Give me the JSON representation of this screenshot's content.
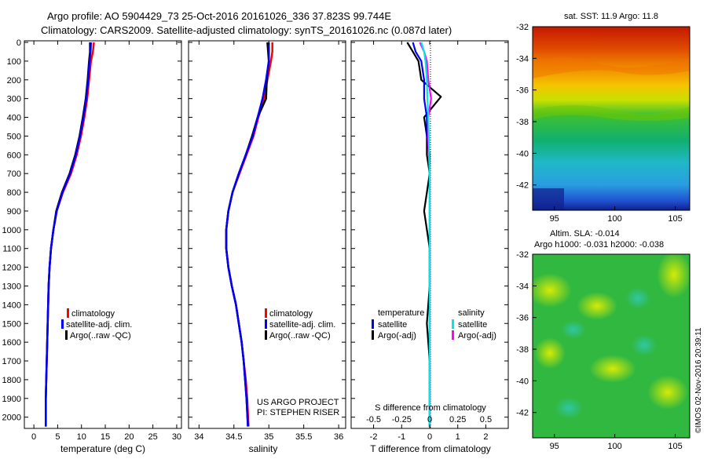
{
  "header": {
    "line1": "Argo profile: AO 5904429_73 25-Oct-2016 20161026_336 37.823S 99.744E",
    "line2": "Climatology: CARS2009. Satellite-adjusted climatology: synTS_20161026.nc (0.087d later)"
  },
  "colors": {
    "climatology": "#ff0000",
    "satellite": "#0000ff",
    "argo": "#000000",
    "sal_satellite": "#00e5e5",
    "sal_argo": "#ff00ff"
  },
  "panels": {
    "temperature": {
      "xlabel": "temperature (deg C)",
      "xticks": [
        "0",
        "5",
        "10",
        "15",
        "20",
        "25",
        "30"
      ],
      "legend": [
        "climatology",
        "satellite-adj. clim.",
        "Argo(..raw -QC)"
      ]
    },
    "salinity": {
      "xlabel": "salinity",
      "xticks": [
        "34",
        "34.5",
        "35",
        "35.5",
        "36"
      ],
      "legend": [
        "climatology",
        "satellite-adj. clim.",
        "Argo(..raw -QC)"
      ],
      "project_line1": "US ARGO PROJECT",
      "project_line2": "PI: STEPHEN RISER"
    },
    "difference": {
      "xlabel": "T difference from climatology",
      "xticks": [
        "-2",
        "-1",
        "0",
        "1",
        "2"
      ],
      "top_label": "S difference from climatology",
      "top_ticks": [
        "-0.5",
        "-0.25",
        "0",
        "0.25",
        "0.5"
      ],
      "legend_temp_title": "temperature",
      "legend_sal_title": "salinity",
      "legend_temp": [
        "satellite",
        "Argo(-adj)"
      ],
      "legend_sal": [
        "satellite",
        "Argo(-adj)"
      ]
    },
    "yticks": [
      "0",
      "100",
      "200",
      "300",
      "400",
      "500",
      "600",
      "700",
      "800",
      "900",
      "1000",
      "1100",
      "1200",
      "1300",
      "1400",
      "1500",
      "1600",
      "1700",
      "1800",
      "1900",
      "2000"
    ]
  },
  "maps": {
    "sst_title": "sat. SST: 11.9  Argo: 11.8",
    "sla_title1": "Altim. SLA: -0.014",
    "sla_title2": "Argo h1000: -0.031 h2000: -0.038",
    "lat_ticks": [
      "-32",
      "-34",
      "-36",
      "-38",
      "-40",
      "-42"
    ],
    "lon_ticks": [
      "95",
      "100",
      "105"
    ]
  },
  "footer": {
    "credit": "©IMOS 02-Nov-2016 20:39:11"
  },
  "chart_data": [
    {
      "type": "line",
      "xlabel": "temperature (deg C)",
      "ylabel": "",
      "xlim": [
        -2,
        31
      ],
      "ylim": [
        2060,
        0
      ],
      "series": [
        {
          "name": "climatology",
          "x": [
            12.6,
            12.4,
            12.0,
            11.6,
            11.2,
            10.6,
            9.9,
            9.0,
            7.8,
            6.1,
            4.8,
            4.1,
            3.6,
            3.3,
            3.1,
            3.0,
            2.9,
            2.8,
            2.7,
            2.6,
            2.5,
            2.5
          ],
          "y": [
            0,
            50,
            100,
            200,
            300,
            400,
            500,
            600,
            700,
            800,
            900,
            1000,
            1100,
            1200,
            1300,
            1400,
            1500,
            1600,
            1700,
            1800,
            1900,
            2050
          ]
        },
        {
          "name": "satellite-adj. clim.",
          "x": [
            12.0,
            11.9,
            11.7,
            11.4,
            11.0,
            10.4,
            9.7,
            8.8,
            7.6,
            6.0,
            4.8,
            4.1,
            3.6,
            3.3,
            3.1,
            3.0,
            2.9,
            2.8,
            2.7,
            2.6,
            2.5,
            2.5
          ],
          "y": [
            0,
            50,
            100,
            200,
            300,
            400,
            500,
            600,
            700,
            800,
            900,
            1000,
            1100,
            1200,
            1300,
            1400,
            1500,
            1600,
            1700,
            1800,
            1900,
            2050
          ]
        },
        {
          "name": "Argo(..raw -QC)",
          "x": [
            11.8,
            11.8,
            11.6,
            11.3,
            10.9,
            10.3,
            9.6,
            8.7,
            7.5,
            5.9,
            4.7,
            4.1,
            3.6,
            3.3,
            3.1,
            3.0,
            2.9,
            2.8,
            2.7,
            2.6,
            2.5,
            2.5
          ],
          "y": [
            0,
            50,
            100,
            200,
            300,
            400,
            500,
            600,
            700,
            800,
            900,
            1000,
            1100,
            1200,
            1300,
            1400,
            1500,
            1600,
            1700,
            1800,
            1900,
            2050
          ]
        }
      ]
    },
    {
      "type": "line",
      "xlabel": "salinity",
      "ylabel": "",
      "xlim": [
        33.85,
        36.1
      ],
      "ylim": [
        2060,
        0
      ],
      "series": [
        {
          "name": "climatology",
          "x": [
            35.05,
            35.05,
            35.03,
            34.98,
            34.93,
            34.85,
            34.78,
            34.68,
            34.58,
            34.48,
            34.42,
            34.39,
            34.39,
            34.42,
            34.47,
            34.53,
            34.57,
            34.61,
            34.64,
            34.67,
            34.69,
            34.71
          ],
          "y": [
            0,
            50,
            100,
            200,
            300,
            400,
            500,
            600,
            700,
            800,
            900,
            1000,
            1100,
            1200,
            1300,
            1400,
            1500,
            1600,
            1700,
            1800,
            1900,
            2050
          ]
        },
        {
          "name": "satellite-adj. clim.",
          "x": [
            35.0,
            35.0,
            35.0,
            34.96,
            34.91,
            34.84,
            34.77,
            34.67,
            34.57,
            34.48,
            34.42,
            34.39,
            34.39,
            34.42,
            34.47,
            34.53,
            34.57,
            34.61,
            34.64,
            34.66,
            34.68,
            34.7
          ],
          "y": [
            0,
            50,
            100,
            200,
            300,
            400,
            500,
            600,
            700,
            800,
            900,
            1000,
            1100,
            1200,
            1300,
            1400,
            1500,
            1600,
            1700,
            1800,
            1900,
            2050
          ]
        },
        {
          "name": "Argo(..raw -QC)",
          "x": [
            34.98,
            34.99,
            35.0,
            34.97,
            34.96,
            34.84,
            34.76,
            34.67,
            34.57,
            34.48,
            34.42,
            34.39,
            34.39,
            34.42,
            34.47,
            34.53,
            34.57,
            34.61,
            34.64,
            34.66,
            34.68,
            34.7
          ],
          "y": [
            0,
            50,
            100,
            200,
            300,
            400,
            500,
            600,
            700,
            800,
            900,
            1000,
            1100,
            1200,
            1300,
            1400,
            1500,
            1600,
            1700,
            1800,
            1900,
            2050
          ]
        }
      ]
    },
    {
      "type": "line",
      "xlabel": "T difference from climatology",
      "ylabel": "",
      "xlim": [
        -2.8,
        2.8
      ],
      "ylim": [
        2060,
        0
      ],
      "series": [
        {
          "name": "satellite",
          "x": [
            -0.6,
            -0.5,
            -0.3,
            -0.2,
            -0.2,
            -0.1,
            -0.1,
            0,
            0,
            0,
            0,
            0,
            0,
            0,
            0,
            0
          ],
          "y": [
            0,
            50,
            100,
            200,
            300,
            400,
            500,
            600,
            700,
            900,
            1100,
            1300,
            1500,
            1700,
            1900,
            2050
          ]
        },
        {
          "name": "Argo(-adj)",
          "x": [
            -0.8,
            -0.6,
            -0.4,
            -0.3,
            0.4,
            -0.2,
            -0.1,
            -0.1,
            0,
            -0.2,
            0,
            0,
            -0.1,
            0,
            0,
            0
          ],
          "y": [
            0,
            50,
            100,
            200,
            290,
            400,
            500,
            600,
            700,
            900,
            1100,
            1300,
            1500,
            1700,
            1900,
            2050
          ]
        },
        {
          "name": "satellite",
          "x": [
            -0.3,
            -0.2,
            -0.15,
            -0.1,
            -0.08,
            -0.05,
            -0.03,
            -0.02,
            0,
            0,
            0,
            0,
            0,
            0,
            0,
            0
          ],
          "y": [
            0,
            50,
            100,
            200,
            300,
            400,
            500,
            600,
            700,
            900,
            1100,
            1300,
            1500,
            1700,
            1900,
            2050
          ]
        },
        {
          "name": "Argo(-adj)",
          "x": [
            -0.35,
            -0.2,
            -0.1,
            -0.05,
            0.05,
            -0.05,
            -0.05,
            -0.03,
            0,
            0,
            0,
            0,
            0,
            0,
            0,
            0
          ],
          "y": [
            0,
            50,
            100,
            200,
            300,
            400,
            500,
            600,
            700,
            900,
            1100,
            1300,
            1500,
            1700,
            1900,
            2050
          ]
        }
      ]
    }
  ]
}
